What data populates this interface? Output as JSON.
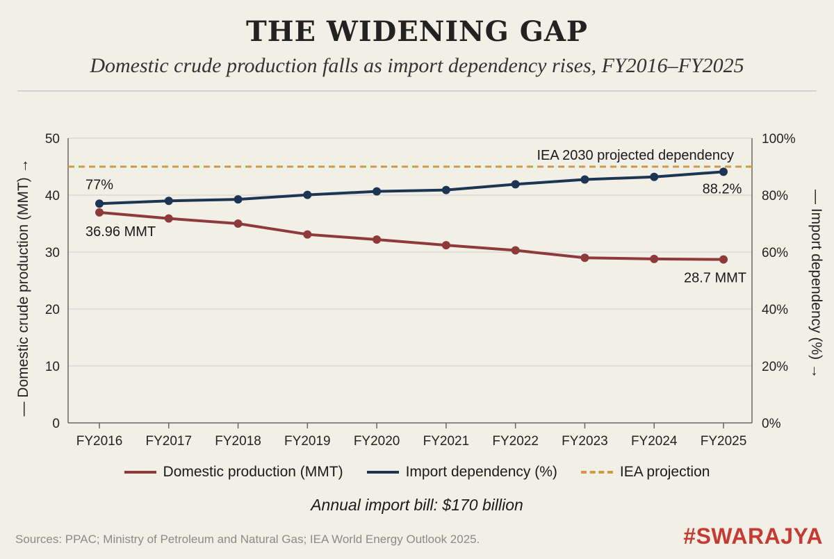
{
  "header": {
    "title": "THE WIDENING GAP",
    "subtitle": "Domestic crude production falls as import dependency rises, FY2016–FY2025"
  },
  "chart_data": {
    "type": "line",
    "categories": [
      "FY2016",
      "FY2017",
      "FY2018",
      "FY2019",
      "FY2020",
      "FY2021",
      "FY2022",
      "FY2023",
      "FY2024",
      "FY2025"
    ],
    "series": [
      {
        "name": "Domestic production (MMT)",
        "axis": "left",
        "color": "#8e3a3a",
        "values": [
          36.96,
          35.9,
          35.0,
          33.1,
          32.2,
          31.2,
          30.3,
          29.0,
          28.8,
          28.7
        ]
      },
      {
        "name": "Import dependency (%)",
        "axis": "right",
        "color": "#1c3553",
        "values": [
          77,
          78,
          78.5,
          80.1,
          81.3,
          81.8,
          83.8,
          85.5,
          86.4,
          88.2
        ]
      }
    ],
    "reference_line": {
      "name": "IEA projection",
      "label": "IEA 2030 projected dependency",
      "axis": "right",
      "value": 90,
      "color": "#cf9a4a",
      "style": "dashed"
    },
    "annotations": [
      {
        "text": "77%",
        "series": 1,
        "index": 0
      },
      {
        "text": "36.96 MMT",
        "series": 0,
        "index": 0
      },
      {
        "text": "88.2%",
        "series": 1,
        "index": 9
      },
      {
        "text": "28.7 MMT",
        "series": 0,
        "index": 9
      }
    ],
    "y_left": {
      "label": "— Domestic crude production (MMT) →",
      "ticks": [
        "0",
        "10",
        "20",
        "30",
        "40",
        "50"
      ],
      "range": [
        0,
        50
      ]
    },
    "y_right": {
      "label": "— Import dependency (%) →",
      "ticks": [
        "0%",
        "20%",
        "40%",
        "60%",
        "80%",
        "100%"
      ],
      "range": [
        0,
        100
      ]
    },
    "grid": true,
    "legend_position": "bottom"
  },
  "legend": {
    "items": [
      {
        "label": "Domestic production (MMT)",
        "color": "#8e3a3a",
        "style": "solid"
      },
      {
        "label": "Import dependency (%)",
        "color": "#1c3553",
        "style": "solid"
      },
      {
        "label": "IEA projection",
        "color": "#cf9a4a",
        "style": "dashed"
      }
    ]
  },
  "footnote": "Annual import bill: $170 billion",
  "source": "Sources: PPAC; Ministry of Petroleum and Natural Gas; IEA World Energy Outlook 2025.",
  "brand": "#SWARAJYA"
}
